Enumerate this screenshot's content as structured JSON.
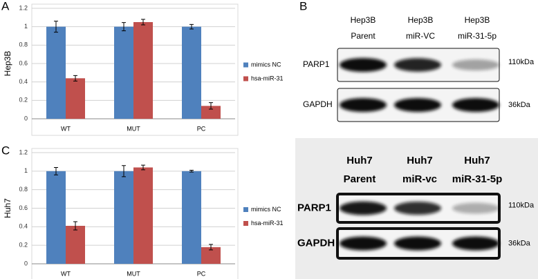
{
  "chart_data": [
    {
      "type": "bar",
      "panel": "A",
      "ylabel": "Hep3B",
      "categories": [
        "WT",
        "MUT",
        "PC"
      ],
      "ylim": [
        0,
        1.2
      ],
      "yticks": [
        0,
        0.2,
        0.4,
        0.6,
        0.8,
        1,
        1.2
      ],
      "grid": true,
      "series": [
        {
          "name": "mimics NC",
          "color": "#4f81bd",
          "values": [
            1,
            1,
            1
          ],
          "errors": [
            0.06,
            0.045,
            0.025
          ]
        },
        {
          "name": "hsa-miR-31",
          "color": "#c0504d",
          "values": [
            0.44,
            1.05,
            0.14
          ],
          "errors": [
            0.03,
            0.03,
            0.035
          ]
        }
      ]
    },
    {
      "type": "bar",
      "panel": "C",
      "ylabel": "Huh7",
      "categories": [
        "WT",
        "MUT",
        "PC"
      ],
      "ylim": [
        0,
        1.2
      ],
      "yticks": [
        0,
        0.2,
        0.4,
        0.6,
        0.8,
        1,
        1.2
      ],
      "grid": true,
      "series": [
        {
          "name": "mimics NC",
          "color": "#4f81bd",
          "values": [
            1,
            1,
            1
          ],
          "errors": [
            0.04,
            0.06,
            0.01
          ]
        },
        {
          "name": "hsa-miR-31",
          "color": "#c0504d",
          "values": [
            0.41,
            1.04,
            0.18
          ],
          "errors": [
            0.045,
            0.025,
            0.03
          ]
        }
      ]
    }
  ],
  "blots": [
    {
      "panel": "B",
      "lanes": [
        {
          "line1": "Hep3B",
          "line2": "Parent"
        },
        {
          "line1": "Hep3B",
          "line2": "miR-VC"
        },
        {
          "line1": "Hep3B",
          "line2": "miR-31-5p"
        }
      ],
      "rows": [
        {
          "protein": "PARP1",
          "size": "110kDa"
        },
        {
          "protein": "GAPDH",
          "size": "36kDa"
        }
      ]
    },
    {
      "lanes": [
        {
          "line1": "Huh7",
          "line2": "Parent"
        },
        {
          "line1": "Huh7",
          "line2": "miR-vc"
        },
        {
          "line1": "Huh7",
          "line2": "miR-31-5p"
        }
      ],
      "rows": [
        {
          "protein": "PARP1",
          "size": "110kDa"
        },
        {
          "protein": "GAPDH",
          "size": "36kDa"
        }
      ]
    }
  ]
}
